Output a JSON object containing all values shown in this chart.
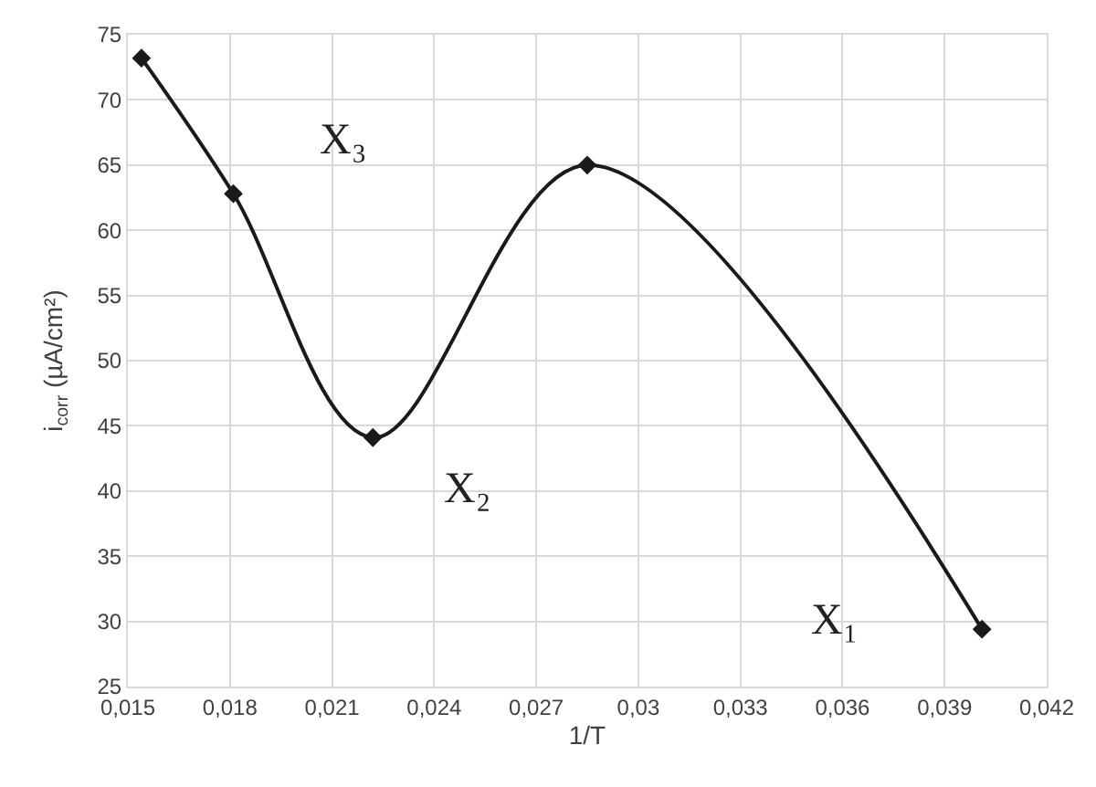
{
  "chart_data": {
    "type": "line",
    "xlabel": "1/T",
    "ylabel": "i$_{corr}$ (µA/cm²)",
    "x": [
      0.0154,
      0.0181,
      0.0222,
      0.0285,
      0.0401
    ],
    "series": [
      {
        "color": "#1a1a1a",
        "values": [
          73.2,
          62.8,
          44.1,
          65.0,
          29.4
        ]
      }
    ],
    "xlim": [
      0.015,
      0.042
    ],
    "xticks": [
      {
        "value": 0.015,
        "label": "0,015"
      },
      {
        "value": 0.018,
        "label": "0,018"
      },
      {
        "value": 0.021,
        "label": "0,021"
      },
      {
        "value": 0.024,
        "label": "0,024"
      },
      {
        "value": 0.027,
        "label": "0,027"
      },
      {
        "value": 0.03,
        "label": "0,03"
      },
      {
        "value": 0.033,
        "label": "0,033"
      },
      {
        "value": 0.036,
        "label": "0,036"
      },
      {
        "value": 0.039,
        "label": "0,039"
      },
      {
        "value": 0.042,
        "label": "0,042"
      }
    ],
    "ylim": [
      25,
      75
    ],
    "yticks": [
      25,
      30,
      35,
      40,
      45,
      50,
      55,
      60,
      65,
      70,
      75
    ],
    "annotations": [
      "X₃",
      "X₂",
      "X₁"
    ],
    "grid": true,
    "marker": "diamond",
    "line_style": "solid"
  }
}
